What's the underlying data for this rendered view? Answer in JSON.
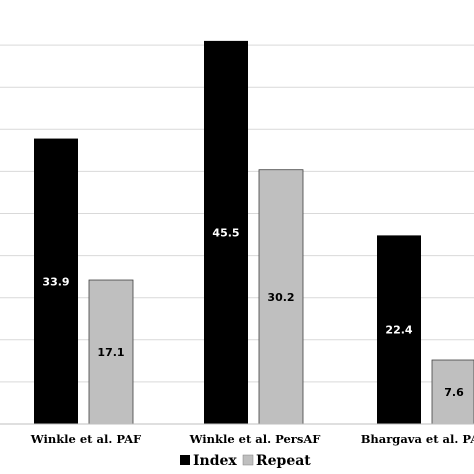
{
  "chart_data": {
    "type": "bar",
    "categories": [
      "Winkle et al. PAF",
      "Winkle et al. PersAF",
      "Bhargava et al. PAF"
    ],
    "series": [
      {
        "name": "Index",
        "values": [
          33.9,
          45.5,
          22.4
        ],
        "color": "#000000",
        "label_color": "#ffffff"
      },
      {
        "name": "Repeat",
        "values": [
          17.1,
          30.2,
          7.6
        ],
        "color": "#bfbfbf",
        "label_color": "#000000"
      }
    ],
    "ylim": [
      0,
      45
    ],
    "grid": true,
    "legend_position": "bottom"
  }
}
